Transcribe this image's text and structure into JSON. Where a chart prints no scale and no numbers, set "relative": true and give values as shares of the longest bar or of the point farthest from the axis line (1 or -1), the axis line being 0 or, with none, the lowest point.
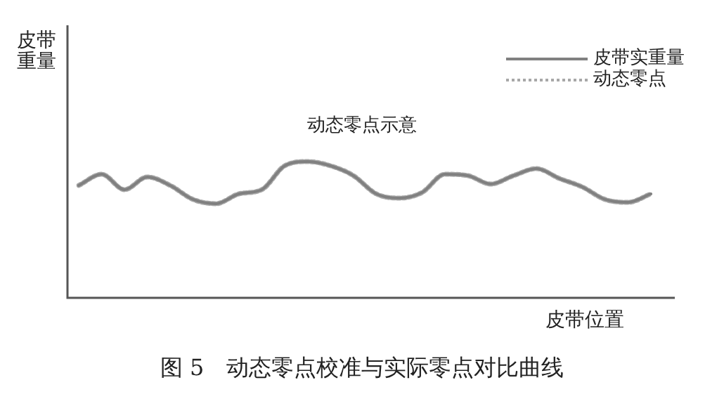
{
  "chart_data": {
    "type": "line",
    "relative": true,
    "xlabel": "皮带位置",
    "ylabel": "皮带重量",
    "legend": "top right",
    "marker": "none",
    "annotations": [
      "动态零点示意",
      "图 5　动态零点校准与实际零点对比曲线"
    ],
    "categories": [
      null,
      null,
      null,
      null,
      null,
      null,
      null,
      null,
      null,
      null,
      null,
      null,
      null,
      null,
      null,
      null,
      null,
      null,
      null,
      null,
      null,
      null,
      null,
      null,
      null,
      null
    ],
    "series": [
      {
        "name": "皮带实重量",
        "color": "#808080",
        "line_style": "solid",
        "values": [
          0.825,
          0.907,
          0.794,
          0.887,
          0.825,
          0.722,
          0.691,
          0.763,
          0.794,
          0.969,
          1,
          0.969,
          0.897,
          0.763,
          0.732,
          0.773,
          0.907,
          0.897,
          0.835,
          0.897,
          0.948,
          0.876,
          0.814,
          0.722,
          0.701,
          0.763
        ]
      },
      {
        "name": "动态零点",
        "color": "#a8a8a8",
        "line_style": "dotted",
        "values": [
          0.825,
          0.907,
          0.794,
          0.887,
          0.825,
          0.722,
          0.691,
          0.763,
          0.794,
          0.969,
          1,
          0.969,
          0.897,
          0.763,
          0.732,
          0.773,
          0.907,
          0.897,
          0.835,
          0.897,
          0.948,
          0.876,
          0.814,
          0.722,
          0.701,
          0.763
        ]
      }
    ]
  }
}
